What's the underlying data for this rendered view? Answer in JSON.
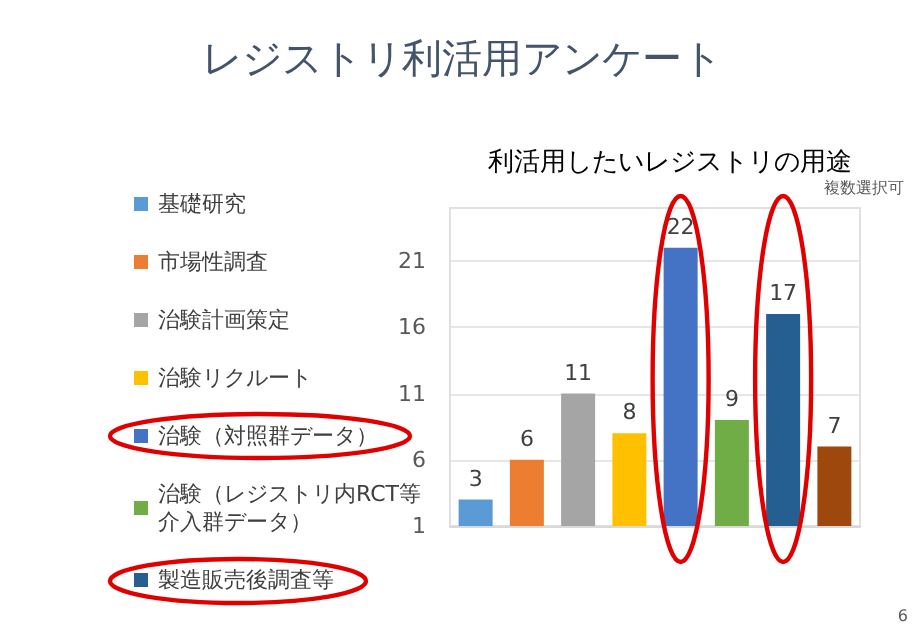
{
  "chart_data": {
    "type": "bar",
    "title": "レジストリ利活用アンケート",
    "subtitle": "利活用したいレジストリの用途",
    "annotations": [
      "複数選択可",
      "6"
    ],
    "categories": [
      null,
      null,
      null,
      null,
      null,
      null,
      null,
      null
    ],
    "series": [
      {
        "name": "基礎研究",
        "color": "#5b9bd5",
        "values": [
          3,
          null,
          null,
          null,
          null,
          null,
          null,
          null
        ]
      },
      {
        "name": "市場性調査",
        "color": "#ed7d31",
        "values": [
          null,
          6,
          null,
          null,
          null,
          null,
          null,
          null
        ]
      },
      {
        "name": "治験計画策定",
        "color": "#a5a5a5",
        "values": [
          null,
          null,
          11,
          null,
          null,
          null,
          null,
          null
        ]
      },
      {
        "name": "治験リクルート",
        "color": "#ffc000",
        "values": [
          null,
          null,
          null,
          8,
          null,
          null,
          null,
          null
        ]
      },
      {
        "name": "治験（対照群データ）",
        "color": "#4472c4",
        "values": [
          null,
          null,
          null,
          null,
          22,
          null,
          null,
          null
        ]
      },
      {
        "name": "治験（レジストリ内RCT等介入群データ）",
        "color": "#70ad47",
        "values": [
          null,
          null,
          null,
          null,
          null,
          9,
          null,
          null
        ]
      },
      {
        "name": "製造販売後調査等",
        "color": "#255e91",
        "values": [
          null,
          null,
          null,
          null,
          null,
          null,
          17,
          null
        ]
      },
      {
        "color": "#9e480e",
        "values": [
          null,
          null,
          null,
          null,
          null,
          null,
          null,
          7
        ]
      }
    ],
    "ylim": [
      1,
      25
    ],
    "yticks": [
      1,
      6,
      11,
      16,
      21
    ],
    "grid": "y",
    "legend": "left",
    "data_labels": true
  }
}
